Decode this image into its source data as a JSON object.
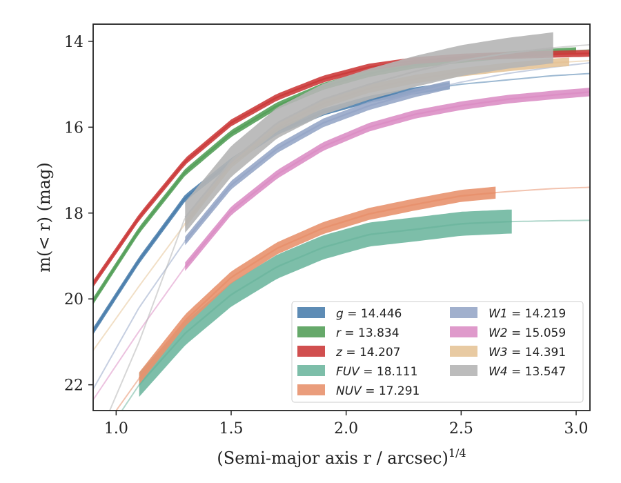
{
  "chart_data": {
    "type": "line",
    "xlabel": "(Semi-major axis r / arcsec)",
    "xlabel_exponent": "1/4",
    "ylabel": "m(< r) (mag)",
    "xlim": [
      0.9,
      3.06
    ],
    "ylim": [
      22.6,
      13.6
    ],
    "y_inverted": true,
    "grid": false,
    "legend_position": "lower-right",
    "xticks": [
      {
        "value": 1.0,
        "label": "1.0"
      },
      {
        "value": 1.5,
        "label": "1.5"
      },
      {
        "value": 2.0,
        "label": "2.0"
      },
      {
        "value": 2.5,
        "label": "2.5"
      },
      {
        "value": 3.0,
        "label": "3.0"
      }
    ],
    "yticks": [
      {
        "value": 14,
        "label": "14"
      },
      {
        "value": 16,
        "label": "16"
      },
      {
        "value": 18,
        "label": "18"
      },
      {
        "value": 20,
        "label": "20"
      },
      {
        "value": 22,
        "label": "22"
      }
    ],
    "series": [
      {
        "name": "g",
        "label_text": "= 14.446",
        "color": "#4c7fad",
        "band": 0.08,
        "x": [
          0.9,
          1.1,
          1.3,
          1.5,
          1.7,
          1.9,
          2.1,
          2.3,
          2.5,
          2.7,
          2.9,
          3.06
        ],
        "y": [
          20.75,
          19.1,
          17.65,
          16.8,
          16.1,
          15.65,
          15.35,
          15.15,
          15.0,
          14.9,
          14.8,
          14.75
        ],
        "solid_range": [
          0.9,
          2.45
        ]
      },
      {
        "name": "r",
        "label_text": "= 13.834",
        "color": "#55a05a",
        "band": 0.08,
        "x": [
          0.9,
          1.1,
          1.3,
          1.5,
          1.7,
          1.9,
          2.1,
          2.3,
          2.5,
          2.7,
          2.9,
          3.06
        ],
        "y": [
          20.05,
          18.4,
          17.05,
          16.15,
          15.5,
          15.05,
          14.75,
          14.55,
          14.42,
          14.32,
          14.25,
          14.2
        ],
        "solid_range": [
          0.9,
          3.0
        ]
      },
      {
        "name": "z",
        "label_text": "= 14.207",
        "color": "#cc3c3c",
        "band": 0.08,
        "x": [
          0.9,
          1.1,
          1.3,
          1.5,
          1.7,
          1.9,
          2.1,
          2.3,
          2.5,
          2.7,
          2.9,
          3.06
        ],
        "y": [
          19.65,
          18.1,
          16.8,
          15.9,
          15.3,
          14.88,
          14.6,
          14.45,
          14.37,
          14.33,
          14.3,
          14.28
        ],
        "solid_range": [
          0.9,
          3.06
        ]
      },
      {
        "name": "FUV",
        "label_text": "= 18.111",
        "color": "#6fb7a0",
        "band": 0.28,
        "x": [
          0.9,
          1.0,
          1.1,
          1.3,
          1.5,
          1.7,
          1.9,
          2.1,
          2.3,
          2.5,
          2.7,
          2.9,
          3.06
        ],
        "y": [
          23.6,
          22.8,
          22.0,
          20.8,
          19.9,
          19.25,
          18.8,
          18.5,
          18.38,
          18.25,
          18.2,
          18.18,
          18.17
        ],
        "solid_range": [
          1.1,
          2.72
        ]
      },
      {
        "name": "NUV",
        "label_text": "= 17.291",
        "color": "#e8926e",
        "band": 0.14,
        "x": [
          0.9,
          1.0,
          1.1,
          1.3,
          1.5,
          1.7,
          1.9,
          2.1,
          2.3,
          2.5,
          2.7,
          2.9,
          3.06
        ],
        "y": [
          23.4,
          22.6,
          21.85,
          20.5,
          19.5,
          18.82,
          18.35,
          18.02,
          17.8,
          17.6,
          17.5,
          17.43,
          17.4
        ],
        "solid_range": [
          1.1,
          2.65
        ]
      },
      {
        "name": "W1",
        "label_text": "= 14.219",
        "color": "#97a7c8",
        "band": 0.1,
        "x": [
          0.9,
          1.1,
          1.3,
          1.5,
          1.7,
          1.9,
          2.1,
          2.3,
          2.5,
          2.7,
          2.9,
          3.06
        ],
        "y": [
          22.1,
          20.2,
          18.65,
          17.35,
          16.5,
          15.9,
          15.5,
          15.2,
          14.95,
          14.75,
          14.6,
          14.5
        ],
        "solid_range": [
          1.3,
          2.45
        ]
      },
      {
        "name": "W2",
        "label_text": "= 15.059",
        "color": "#dc8fc5",
        "band": 0.1,
        "x": [
          0.9,
          1.1,
          1.3,
          1.5,
          1.7,
          1.9,
          2.1,
          2.3,
          2.5,
          2.7,
          2.9,
          3.06
        ],
        "y": [
          22.35,
          20.75,
          19.25,
          17.95,
          17.1,
          16.45,
          16.0,
          15.7,
          15.5,
          15.35,
          15.25,
          15.18
        ],
        "solid_range": [
          1.3,
          3.06
        ]
      },
      {
        "name": "W3",
        "label_text": "= 14.391",
        "color": "#e6c498",
        "band": 0.1,
        "x": [
          0.9,
          1.1,
          1.3,
          1.5,
          1.7,
          1.9,
          2.1,
          2.3,
          2.5,
          2.7,
          2.9,
          3.06
        ],
        "y": [
          21.2,
          19.7,
          18.25,
          16.85,
          16.0,
          15.45,
          15.1,
          14.88,
          14.72,
          14.6,
          14.5,
          14.45
        ],
        "solid_range": [
          1.3,
          2.97
        ]
      },
      {
        "name": "W4",
        "label_text": "= 13.547",
        "color": "#b5b5b5",
        "band": 0.36,
        "x": [
          0.9,
          1.1,
          1.3,
          1.5,
          1.7,
          1.9,
          2.1,
          2.3,
          2.5,
          2.7,
          2.9,
          3.06
        ],
        "y": [
          23.5,
          21.0,
          18.1,
          16.8,
          15.9,
          15.35,
          15.0,
          14.7,
          14.45,
          14.28,
          14.15,
          14.08
        ],
        "solid_range": [
          1.3,
          2.9
        ]
      }
    ]
  }
}
